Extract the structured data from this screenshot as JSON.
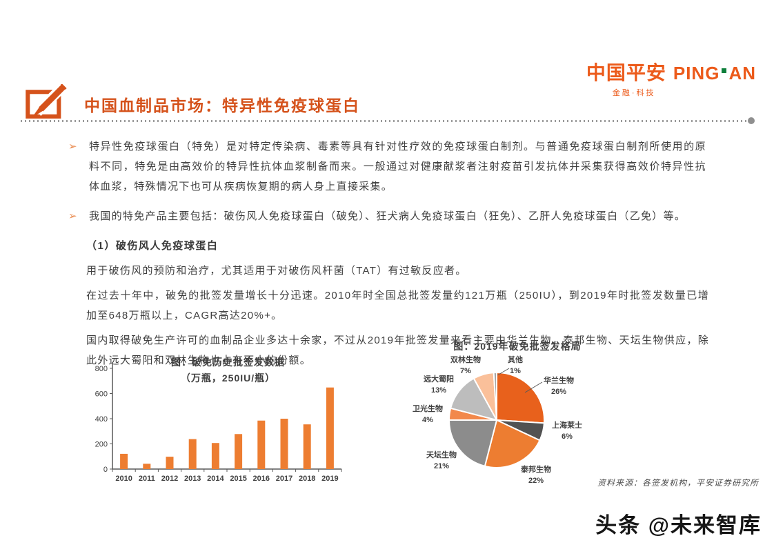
{
  "logo": {
    "cn": "中国平安",
    "en_left": "PING",
    "en_right": "AN",
    "subtitle": "金融·科技",
    "orange": "#ec5a1a",
    "green": "#0e7f3c"
  },
  "header": {
    "title": "中国血制品市场：特异性免疫球蛋白"
  },
  "bullets": [
    {
      "marker": "➢",
      "text": "特异性免疫球蛋白（特免）是对特定传染病、毒素等具有针对性疗效的免疫球蛋白制剂。与普通免疫球蛋白制剂所使用的原料不同，特免是由高效价的特异性抗体血浆制备而来。一般通过对健康献浆者注射疫苗引发抗体并采集获得高效价特异性抗体血浆，特殊情况下也可从疾病恢复期的病人身上直接采集。"
    },
    {
      "marker": "➢",
      "text": "我国的特免产品主要包括：破伤风人免疫球蛋白（破免）、狂犬病人免疫球蛋白（狂免）、乙肝人免疫球蛋白（乙免）等。"
    }
  ],
  "section": {
    "heading": "（1）破伤风人免疫球蛋白",
    "paragraphs": [
      "用于破伤风的预防和治疗，尤其适用于对破伤风杆菌（TAT）有过敏反应者。",
      "在过去十年中，破免的批签发量增长十分迅速。2010年时全国总批签发量约121万瓶（250IU），到2019年时批签发数量已增加至648万瓶以上，CAGR高达20%+。",
      "国内取得破免生产许可的血制品企业多达十余家，不过从2019年批签发量来看主要由华兰生物、泰邦生物、天坛生物供应，除此外远大蜀阳和双林生物也占有不小的份额。"
    ]
  },
  "chart_data": [
    {
      "type": "bar",
      "title": "图：破免历史批签发数据",
      "subtitle": "（万瓶，250IU/瓶）",
      "categories": [
        "2010",
        "2011",
        "2012",
        "2013",
        "2014",
        "2015",
        "2016",
        "2017",
        "2018",
        "2019"
      ],
      "values": [
        121,
        42,
        98,
        238,
        207,
        278,
        385,
        400,
        355,
        648
      ],
      "ylim": [
        0,
        800
      ],
      "yticks": [
        0,
        200,
        400,
        600,
        800
      ],
      "bar_color": "#ED7D31",
      "grid": false,
      "legend": "none"
    },
    {
      "type": "pie",
      "title": "图：2019年破免批签发格局",
      "start_angle_deg": 0,
      "direction": "clockwise",
      "slices": [
        {
          "label": "华兰生物",
          "pct": 26,
          "color": "#E8611C"
        },
        {
          "label": "上海莱士",
          "pct": 6,
          "color": "#525252"
        },
        {
          "label": "泰邦生物",
          "pct": 22,
          "color": "#ED7D31"
        },
        {
          "label": "天坛生物",
          "pct": 21,
          "color": "#8C8C8C"
        },
        {
          "label": "卫光生物",
          "pct": 4,
          "color": "#F2884B"
        },
        {
          "label": "远大蜀阳",
          "pct": 13,
          "color": "#BDBDBD"
        },
        {
          "label": "双林生物",
          "pct": 7,
          "color": "#FAC09A"
        },
        {
          "label": "其他",
          "pct": 1,
          "color": "#A6A6A6"
        }
      ]
    }
  ],
  "footer": {
    "source_note": "资料来源：各签发机构，平安证券研究所",
    "watermark": "头条 @未来智库"
  },
  "colors": {
    "accent_orange": "#d5521b",
    "bar_orange": "#ED7D31",
    "body_text": "#3f3f3f"
  }
}
